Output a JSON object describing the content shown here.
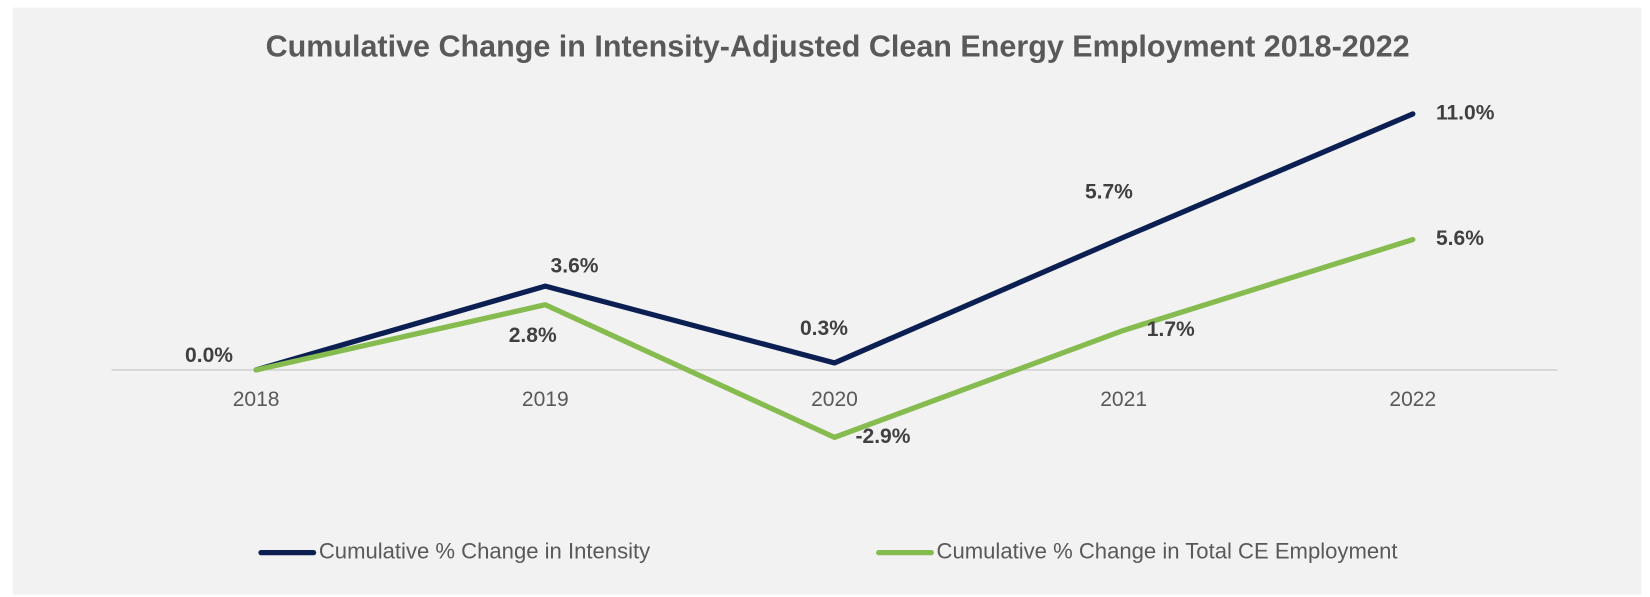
{
  "chart_data": {
    "type": "line",
    "title": "Cumulative Change in Intensity-Adjusted Clean Energy Employment 2018-2022",
    "categories": [
      "2018",
      "2019",
      "2020",
      "2021",
      "2022"
    ],
    "series": [
      {
        "name": "Cumulative % Change in Intensity",
        "color": "#0c1f52",
        "values": [
          0.0,
          3.6,
          0.3,
          5.7,
          11.0
        ],
        "value_labels": [
          "0.0%",
          "3.6%",
          "0.3%",
          "5.7%",
          "11.0%"
        ]
      },
      {
        "name": "Cumulative % Change in Total CE Employment",
        "color": "#86bb4f",
        "values": [
          0.0,
          2.8,
          -2.9,
          1.7,
          5.6
        ],
        "value_labels": [
          null,
          "2.8%",
          "-2.9%",
          "1.7%",
          "5.6%"
        ]
      }
    ],
    "ylim": [
      -6,
      12
    ],
    "legend": "bottom"
  }
}
